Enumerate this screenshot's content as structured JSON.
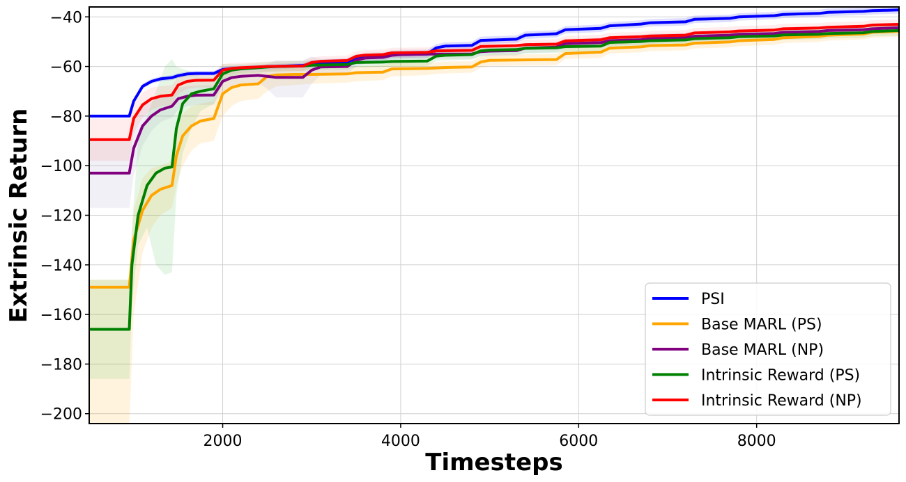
{
  "chart_data": {
    "type": "line",
    "xlabel": "Timesteps",
    "ylabel": "Extrinsic Return",
    "xlim": [
      500,
      9600
    ],
    "ylim": [
      -204,
      -36
    ],
    "xticks": [
      2000,
      4000,
      6000,
      8000
    ],
    "xtick_labels": [
      "2000",
      "4000",
      "6000",
      "8000"
    ],
    "yticks": [
      -40,
      -60,
      -80,
      -100,
      -120,
      -140,
      -160,
      -180,
      -200
    ],
    "ytick_labels": [
      "−40",
      "−60",
      "−80",
      "−100",
      "−120",
      "−140",
      "−160",
      "−180",
      "−200"
    ],
    "grid": true,
    "legend_position": "bottom-right",
    "series": [
      {
        "name": "PSI",
        "color": "#0000ff",
        "band_color": "#0000ff",
        "x": [
          500,
          950,
          1000,
          1100,
          1200,
          1300,
          1430,
          1500,
          1600,
          1700,
          1900,
          2000,
          2100,
          2400,
          2500,
          2900,
          3000,
          3400,
          3500,
          3800,
          3900,
          4300,
          4400,
          4500,
          4800,
          4900,
          5300,
          5400,
          5750,
          5850,
          6250,
          6350,
          6700,
          6800,
          7200,
          7300,
          7700,
          7800,
          8200,
          8300,
          8700,
          8800,
          9200,
          9300,
          9600
        ],
        "values": [
          -80,
          -80,
          -74,
          -68,
          -66,
          -65,
          -64.5,
          -63.7,
          -63,
          -62.8,
          -62.8,
          -61.2,
          -60.8,
          -60.3,
          -60.1,
          -59.6,
          -59,
          -58.2,
          -56.7,
          -56.2,
          -55.2,
          -55,
          -52.5,
          -51.8,
          -51.5,
          -49.5,
          -49,
          -47.4,
          -46.8,
          -45.2,
          -44.6,
          -43.6,
          -42.9,
          -42.4,
          -42,
          -41,
          -40.6,
          -40,
          -39.5,
          -39,
          -38.6,
          -38.2,
          -37.8,
          -37.5,
          -37.2
        ],
        "lower": [
          -80.5,
          -80.5,
          -75,
          -69,
          -67,
          -66,
          -65.5,
          -64.7,
          -64,
          -63.8,
          -63.8,
          -62.2,
          -61.8,
          -61.3,
          -61.1,
          -60.6,
          -60.5,
          -59.7,
          -58.2,
          -57.7,
          -56.7,
          -56.5,
          -54,
          -53.3,
          -53,
          -51,
          -50.5,
          -48.9,
          -48.3,
          -46.7,
          -46.1,
          -45.1,
          -44.4,
          -43.9,
          -43.5,
          -42.5,
          -42.1,
          -41.5,
          -41,
          -40.5,
          -40.1,
          -39.7,
          -39.3,
          -39,
          -38.7
        ],
        "upper": [
          -79.5,
          -79.5,
          -73,
          -67,
          -65,
          -64,
          -63.5,
          -62.7,
          -62,
          -61.8,
          -61.8,
          -60.2,
          -59.8,
          -59.3,
          -59.1,
          -58.6,
          -57.5,
          -56.7,
          -55.2,
          -54.7,
          -53.7,
          -53.5,
          -51,
          -50.3,
          -50,
          -48,
          -47.5,
          -45.9,
          -45.3,
          -43.7,
          -43.1,
          -42.1,
          -41.4,
          -40.9,
          -40.5,
          -39.5,
          -39.1,
          -38.5,
          -38,
          -37.5,
          -37.1,
          -36.7,
          -36.3,
          -36,
          -35.7
        ]
      },
      {
        "name": "Base MARL (PS)",
        "color": "#ffa500",
        "band_color": "#ffa500",
        "x": [
          500,
          950,
          1000,
          1100,
          1200,
          1300,
          1430,
          1480,
          1550,
          1650,
          1750,
          1900,
          2000,
          2100,
          2200,
          2400,
          2500,
          2600,
          2800,
          3000,
          3400,
          3500,
          3800,
          3900,
          4300,
          4400,
          4500,
          4800,
          4900,
          5000,
          5750,
          5850,
          6250,
          6350,
          6700,
          6800,
          7200,
          7300,
          7700,
          7800,
          8200,
          8300,
          8700,
          8800,
          9200,
          9300,
          9600
        ],
        "values": [
          -149,
          -149,
          -130,
          -118,
          -112,
          -109.5,
          -108,
          -96,
          -88,
          -84,
          -82,
          -81,
          -71,
          -68.5,
          -67.5,
          -67,
          -64,
          -63.4,
          -63.2,
          -63.2,
          -63,
          -62.5,
          -62.3,
          -61,
          -60.8,
          -60.6,
          -60.4,
          -60.2,
          -58.2,
          -57.5,
          -57.2,
          -54.8,
          -54.2,
          -52.6,
          -52.1,
          -51.6,
          -51.3,
          -50.6,
          -50.1,
          -49.6,
          -49.1,
          -48.4,
          -47.9,
          -47.4,
          -46.9,
          -46.2,
          -45.8
        ],
        "lower": [
          -206,
          -206,
          -160,
          -135,
          -125,
          -120,
          -117,
          -108,
          -100,
          -94,
          -91,
          -90,
          -80,
          -76,
          -74,
          -73,
          -70,
          -68,
          -67.5,
          -67,
          -66.5,
          -66,
          -65.5,
          -64,
          -63.5,
          -63,
          -62.8,
          -62.5,
          -60.5,
          -59.8,
          -59.5,
          -57,
          -56.5,
          -54.8,
          -54.3,
          -53.8,
          -53.5,
          -52.8,
          -52.3,
          -51.8,
          -51.3,
          -50.6,
          -50.1,
          -49.6,
          -49.1,
          -48.4,
          -48
        ],
        "upper": [
          -146,
          -146,
          -118,
          -105,
          -101,
          -100,
          -98,
          -86,
          -79,
          -76,
          -75,
          -74,
          -64,
          -62.5,
          -62,
          -62,
          -61,
          -60.5,
          -60.5,
          -60.5,
          -60.5,
          -60,
          -59.5,
          -58.5,
          -58.5,
          -58.3,
          -58,
          -57.9,
          -56,
          -55.2,
          -55,
          -52.6,
          -52,
          -50.4,
          -49.9,
          -49.4,
          -49.1,
          -48.4,
          -47.9,
          -47.4,
          -46.9,
          -46.2,
          -45.7,
          -45.2,
          -44.7,
          -44,
          -43.6
        ]
      },
      {
        "name": "Base MARL (NP)",
        "color": "#800080",
        "band_color": "#8a8ab8",
        "x": [
          500,
          950,
          1000,
          1100,
          1200,
          1300,
          1430,
          1500,
          1600,
          1700,
          1900,
          2000,
          2100,
          2200,
          2400,
          2500,
          2600,
          2900,
          3000,
          3100,
          3400,
          3500,
          3600,
          3800,
          3900,
          4000,
          4300,
          4400,
          4500,
          4800,
          4900,
          5000,
          5300,
          5400,
          5750,
          5850,
          6250,
          6350,
          6700,
          6800,
          7200,
          7300,
          7700,
          7800,
          8200,
          8300,
          8700,
          8800,
          9200,
          9300,
          9600
        ],
        "values": [
          -103,
          -103,
          -93,
          -84,
          -80,
          -77.5,
          -76,
          -73,
          -72,
          -71.6,
          -71.5,
          -66,
          -64.5,
          -64,
          -63.6,
          -64,
          -64.4,
          -64.4,
          -61.5,
          -60.2,
          -60,
          -57.5,
          -56.6,
          -56.3,
          -55.5,
          -55.2,
          -55,
          -55,
          -55,
          -55,
          -54,
          -53.8,
          -53.6,
          -52.6,
          -52.2,
          -50.8,
          -50.4,
          -49.6,
          -49.2,
          -48.8,
          -48.4,
          -47.8,
          -47.4,
          -47,
          -46.7,
          -46.2,
          -45.9,
          -45.5,
          -45.2,
          -44.8,
          -44.4
        ],
        "lower": [
          -117,
          -117,
          -104,
          -92,
          -86,
          -82.5,
          -80.5,
          -77.5,
          -76,
          -75.5,
          -75.5,
          -70,
          -68,
          -67,
          -66.5,
          -69,
          -72.5,
          -72.5,
          -67,
          -63.5,
          -63,
          -60,
          -58.8,
          -58.5,
          -57.5,
          -57.2,
          -57,
          -57,
          -57,
          -57,
          -56,
          -55.8,
          -55.6,
          -54.6,
          -54.2,
          -52.8,
          -52.4,
          -51.6,
          -51.2,
          -50.8,
          -50.4,
          -49.8,
          -49.4,
          -49,
          -48.7,
          -48.2,
          -47.9,
          -47.5,
          -47.2,
          -46.8,
          -46.4
        ],
        "upper": [
          -89,
          -89,
          -82,
          -76,
          -74,
          -72.5,
          -71.5,
          -68.5,
          -68,
          -67.7,
          -67.5,
          -62,
          -61,
          -61,
          -60.7,
          -59,
          -57.5,
          -57.5,
          -56,
          -56.9,
          -57,
          -55,
          -54.4,
          -54.1,
          -53.5,
          -53.2,
          -53,
          -53,
          -53,
          -53,
          -52,
          -51.8,
          -51.6,
          -50.6,
          -50.2,
          -48.8,
          -48.4,
          -47.6,
          -47.2,
          -46.8,
          -46.4,
          -45.8,
          -45.4,
          -45,
          -44.7,
          -44.2,
          -43.9,
          -43.5,
          -43.2,
          -42.8,
          -42.4
        ]
      },
      {
        "name": "Intrinsic Reward (PS)",
        "color": "#008000",
        "band_color": "#3cb83c",
        "x": [
          500,
          950,
          980,
          1050,
          1150,
          1250,
          1350,
          1430,
          1480,
          1550,
          1650,
          1750,
          1900,
          2000,
          2100,
          2200,
          2400,
          2500,
          2600,
          2900,
          3000,
          3400,
          3500,
          3800,
          3900,
          4300,
          4400,
          4500,
          4800,
          4900,
          5000,
          5300,
          5400,
          5750,
          5850,
          6250,
          6350,
          6700,
          6800,
          7200,
          7300,
          7700,
          7800,
          8200,
          8300,
          8700,
          8800,
          9200,
          9300,
          9600
        ],
        "values": [
          -166,
          -166,
          -140,
          -120,
          -108,
          -103,
          -101,
          -100.5,
          -85,
          -75,
          -71,
          -70,
          -69,
          -63,
          -61.5,
          -61,
          -60.5,
          -60.2,
          -60,
          -59.8,
          -59.5,
          -59.2,
          -58.4,
          -58.2,
          -58,
          -57.8,
          -55.8,
          -55.5,
          -55.2,
          -53.7,
          -53.4,
          -53.2,
          -52.7,
          -52.5,
          -52,
          -51.8,
          -50.3,
          -49.9,
          -49.6,
          -49.3,
          -48.8,
          -48.4,
          -48,
          -47.7,
          -47.3,
          -47,
          -46.7,
          -46.4,
          -45.9,
          -45.5
        ],
        "lower": [
          -186,
          -186,
          -155,
          -132,
          -125,
          -140,
          -144,
          -143,
          -112,
          -95,
          -85,
          -78,
          -75,
          -67,
          -64,
          -63,
          -62.5,
          -62.2,
          -62,
          -61.8,
          -61.5,
          -61.2,
          -60.4,
          -60.2,
          -60,
          -59.8,
          -57.8,
          -57.5,
          -57.2,
          -55.7,
          -55.4,
          -55.2,
          -54.7,
          -54.5,
          -54,
          -53.8,
          -52.3,
          -51.9,
          -51.6,
          -51.3,
          -50.8,
          -50.4,
          -50,
          -49.7,
          -49.3,
          -49,
          -48.7,
          -48.4,
          -47.9,
          -47.5
        ],
        "upper": [
          -146,
          -146,
          -125,
          -90,
          -80,
          -70,
          -60,
          -57,
          -60,
          -61,
          -62,
          -64,
          -64,
          -59,
          -59,
          -59,
          -58.5,
          -58.2,
          -58,
          -57.8,
          -57.5,
          -57.2,
          -56.4,
          -56.2,
          -56,
          -55.8,
          -53.8,
          -53.5,
          -53.2,
          -51.7,
          -51.4,
          -51.2,
          -50.7,
          -50.5,
          -50,
          -49.8,
          -48.3,
          -47.9,
          -47.6,
          -47.3,
          -46.8,
          -46.4,
          -46,
          -45.7,
          -45.3,
          -45,
          -44.7,
          -44.4,
          -43.9,
          -43.5
        ]
      },
      {
        "name": "Intrinsic Reward (NP)",
        "color": "#ff0000",
        "band_color": "#ff6f6f",
        "x": [
          500,
          950,
          1000,
          1100,
          1200,
          1300,
          1430,
          1500,
          1600,
          1700,
          1900,
          2000,
          2100,
          2200,
          2400,
          2500,
          2900,
          3000,
          3100,
          3400,
          3500,
          3600,
          3800,
          3900,
          4300,
          4400,
          4800,
          4900,
          5300,
          5400,
          5750,
          5850,
          6250,
          6350,
          6700,
          6800,
          7200,
          7300,
          7700,
          7800,
          8200,
          8300,
          8700,
          8800,
          9200,
          9300,
          9600
        ],
        "values": [
          -89.5,
          -89.5,
          -81,
          -75.5,
          -73,
          -72,
          -71.5,
          -67.5,
          -66,
          -65.6,
          -65.5,
          -61.5,
          -60.8,
          -60.5,
          -60.2,
          -60,
          -59.8,
          -58.4,
          -57.9,
          -57.6,
          -55.9,
          -55.4,
          -55.2,
          -54.5,
          -54.3,
          -53.7,
          -53.5,
          -51.9,
          -51.6,
          -51.2,
          -51,
          -49.7,
          -49.2,
          -48.4,
          -48,
          -47.7,
          -47.4,
          -46.5,
          -46,
          -45.7,
          -45.3,
          -44.8,
          -44.5,
          -44.2,
          -43.8,
          -43.3,
          -43
        ],
        "lower": [
          -98,
          -98,
          -87,
          -80.5,
          -77.5,
          -76,
          -75.5,
          -71,
          -69,
          -68.5,
          -68.5,
          -64,
          -63,
          -62.5,
          -62.2,
          -62,
          -61.8,
          -60.4,
          -59.9,
          -59.6,
          -57.9,
          -57.4,
          -57.2,
          -56.5,
          -56.3,
          -55.7,
          -55.5,
          -53.9,
          -53.6,
          -53.2,
          -53,
          -51.7,
          -51.2,
          -50.4,
          -50,
          -49.7,
          -49.4,
          -48.5,
          -48,
          -47.7,
          -47.3,
          -46.8,
          -46.5,
          -46.2,
          -45.8,
          -45.3,
          -45
        ],
        "upper": [
          -81,
          -81,
          -75,
          -70.5,
          -68.5,
          -68,
          -67.5,
          -64,
          -63,
          -62.7,
          -62.5,
          -59,
          -58.6,
          -58.5,
          -58.2,
          -58,
          -57.8,
          -56.4,
          -55.9,
          -55.6,
          -53.9,
          -53.4,
          -53.2,
          -52.5,
          -52.3,
          -51.7,
          -51.5,
          -49.9,
          -49.6,
          -49.2,
          -49,
          -47.7,
          -47.2,
          -46.4,
          -46,
          -45.7,
          -45.4,
          -44.5,
          -44,
          -43.7,
          -43.3,
          -42.8,
          -42.5,
          -42.2,
          -41.8,
          -41.3,
          -41
        ]
      }
    ]
  }
}
